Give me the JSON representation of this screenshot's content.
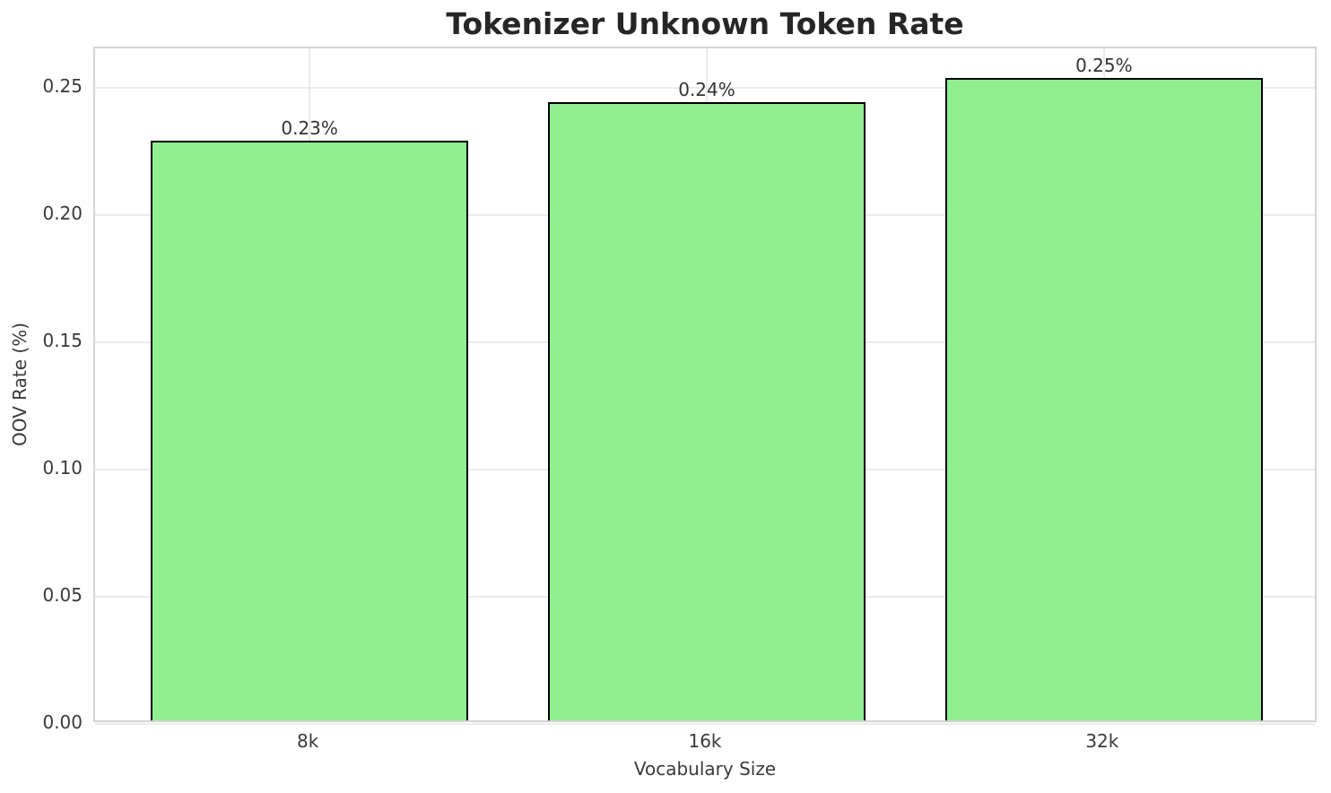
{
  "chart_data": {
    "type": "bar",
    "title": "Tokenizer Unknown Token Rate",
    "xlabel": "Vocabulary Size",
    "ylabel": "OOV Rate (%)",
    "categories": [
      "8k",
      "16k",
      "32k"
    ],
    "values": [
      0.2278,
      0.243,
      0.2525
    ],
    "value_labels": [
      "0.23%",
      "0.24%",
      "0.25%"
    ],
    "yticks": [
      0.0,
      0.05,
      0.1,
      0.15,
      0.2,
      0.25
    ],
    "ytick_labels": [
      "0.00",
      "0.05",
      "0.10",
      "0.15",
      "0.20",
      "0.25"
    ],
    "ylim": [
      0,
      0.2655
    ],
    "grid": true,
    "legend": null,
    "bar_color": "#90EE90",
    "bar_edge_color": "#000000"
  }
}
